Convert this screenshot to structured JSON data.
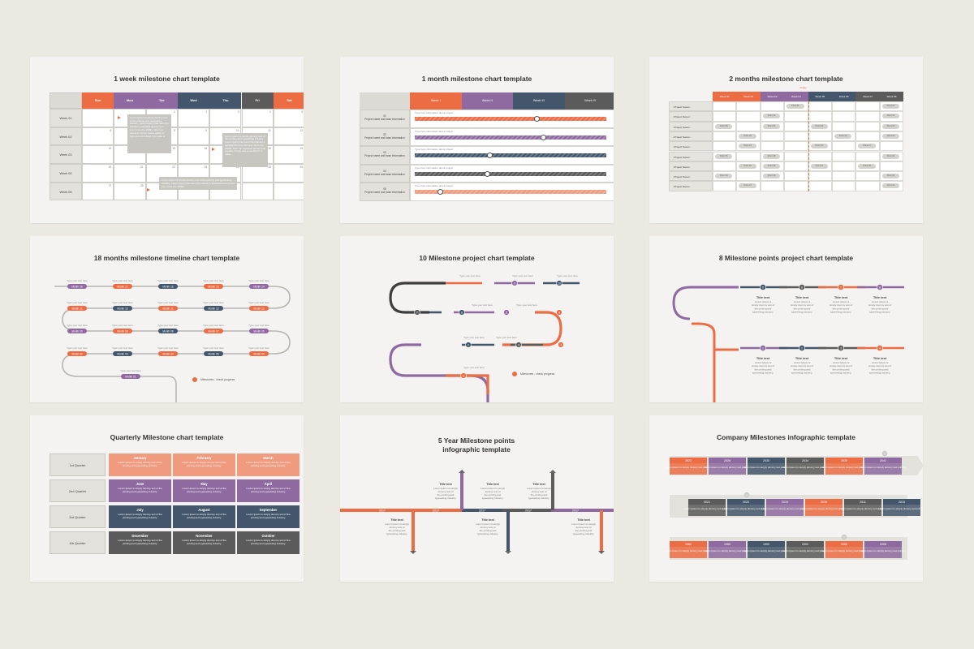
{
  "colors": {
    "orange": "#ec6c44",
    "purple": "#8f6aa0",
    "navy": "#43566b",
    "gray": "#5b5b5b",
    "salmon": "#f09a7e",
    "lightgray": "#dad8d3",
    "bg": "#f4f3f1",
    "page": "#ece9e3"
  },
  "slides": {
    "s1": {
      "title": "1 week milestone chart template",
      "days": [
        "Sun",
        "Mon",
        "Tue",
        "Wed",
        "Thu",
        "Fri",
        "Sat"
      ],
      "weeks": [
        "Week 01",
        "Week 02",
        "Week 03",
        "Week 04",
        "Week 05"
      ],
      "nums": [
        [
          "",
          "",
          "1",
          "2",
          "3",
          "4",
          "5"
        ],
        [
          "6",
          "7",
          "8",
          "9",
          "10",
          "11",
          "12"
        ],
        [
          "13",
          "14",
          "15",
          "16",
          "17",
          "18",
          "19"
        ],
        [
          "20",
          "21",
          "22",
          "23",
          "24",
          "25",
          "26"
        ],
        [
          "27",
          "28",
          "29",
          "30",
          "",
          "",
          ""
        ]
      ],
      "notes": [
        "Lorem Ipsum is simply dummy text of the printing and typesetting industry. Lorem Ipsum has been the industry's standard dummy text ever since the 1500s, when an unknown printer took a galley of type and scrambled it to make a",
        "Lorem Ipsum is simply dummy text of the printing and typesetting industry. Lorem Ipsum has been the industry's standard dummy text ever since the 1500s, when an unknown printer took a galley of type and scrambled it to make",
        "Lorem Ipsum is simply dummy text of the printing and typesetting industry. Lorem Ipsum has been the industry's standard dummy text ever since the 1500s"
      ]
    },
    "s2": {
      "title": "1 month milestone chart template",
      "weeks": [
        "Week I",
        "Week II",
        "Week III",
        "Week IV"
      ],
      "rows": [
        {
          "num": "01",
          "label": "Project name and base information"
        },
        {
          "num": "02",
          "label": "Project name and base information"
        },
        {
          "num": "03",
          "label": "Project name and base information"
        },
        {
          "num": "04",
          "label": "Project name and base information"
        },
        {
          "num": "05",
          "label": "Project name and base information"
        }
      ],
      "info": "Type here information about project"
    },
    "s3": {
      "title": "2 months milestone chart template",
      "today": "Today",
      "weeks": [
        "Week 01",
        "Week 02",
        "Week 03",
        "Week 04",
        "Week 05",
        "Week 06",
        "Week 07",
        "Week 08"
      ],
      "project": "<Project Name>",
      "points": [
        {
          "r": 0,
          "c": 3,
          "t": "Point 01"
        },
        {
          "r": 0,
          "c": 7,
          "t": "Point 07"
        },
        {
          "r": 1,
          "c": 2,
          "t": "Point 12"
        },
        {
          "r": 1,
          "c": 7,
          "t": "Point 21"
        },
        {
          "r": 2,
          "c": 0,
          "t": "Point 08"
        },
        {
          "r": 2,
          "c": 2,
          "t": "Point 04"
        },
        {
          "r": 2,
          "c": 4,
          "t": "Point 03"
        },
        {
          "r": 2,
          "c": 7,
          "t": "Point 25"
        },
        {
          "r": 3,
          "c": 1,
          "t": "Point 29"
        },
        {
          "r": 3,
          "c": 5,
          "t": "Point 23"
        },
        {
          "r": 3,
          "c": 7,
          "t": "Point 26"
        },
        {
          "r": 4,
          "c": 1,
          "t": "Point 10"
        },
        {
          "r": 4,
          "c": 4,
          "t": "Point 32"
        },
        {
          "r": 4,
          "c": 6,
          "t": "Point 17"
        },
        {
          "r": 5,
          "c": 0,
          "t": "Point 05"
        },
        {
          "r": 5,
          "c": 2,
          "t": "Point 18"
        },
        {
          "r": 5,
          "c": 7,
          "t": "Point 30"
        },
        {
          "r": 6,
          "c": 1,
          "t": "Point 02"
        },
        {
          "r": 6,
          "c": 2,
          "t": "Point 16"
        },
        {
          "r": 6,
          "c": 4,
          "t": "Point 11"
        },
        {
          "r": 6,
          "c": 6,
          "t": "Point 09"
        },
        {
          "r": 7,
          "c": 0,
          "t": "Point 14"
        },
        {
          "r": 7,
          "c": 2,
          "t": "Point 19"
        },
        {
          "r": 7,
          "c": 7,
          "t": "Point 20"
        },
        {
          "r": 8,
          "c": 1,
          "t": "Point 27"
        },
        {
          "r": 8,
          "c": 7,
          "t": "Point 22"
        }
      ]
    },
    "s4": {
      "title": "18 months milestone timeline chart template",
      "type": "Type your text here",
      "legend": "Milestones - check progress",
      "rows": [
        [
          "Month 18",
          "Month 17",
          "Month 16",
          "Month 15",
          "Month 14"
        ],
        [
          "Month 11",
          "Month 10",
          "Month 11",
          "Month 12",
          "Month 13"
        ],
        [
          "Month 09",
          "Month 09",
          "Month 08",
          "Month 07",
          "Month 06"
        ],
        [
          "Month 02",
          "Month 03",
          "Month 04",
          "Month 05",
          "Month 05"
        ],
        [
          "Month 01"
        ]
      ]
    },
    "s5": {
      "title": "10 Milestone project chart template",
      "type": "Type your text here",
      "legend": "Milestones - check progress",
      "nums": [
        "1",
        "2",
        "3",
        "4",
        "5",
        "6",
        "7",
        "8",
        "9",
        "10"
      ]
    },
    "s6": {
      "title": "8 Milestone points project chart template",
      "nums": [
        "1",
        "2",
        "3",
        "4",
        "5",
        "6",
        "7",
        "8"
      ],
      "item_title": "Title text",
      "item_body": "Lorem Ipsum is simply dummy text of the printing and typesetting industry."
    },
    "s7": {
      "title": "Quarterly Milestone chart template",
      "quarters": [
        "1st Quarter",
        "2nd Quarter",
        "3rd Quarter",
        "4th Quarter"
      ],
      "months": [
        [
          "January",
          "February",
          "March"
        ],
        [
          "June",
          "May",
          "April"
        ],
        [
          "July",
          "August",
          "September"
        ],
        [
          "December",
          "November",
          "October"
        ]
      ],
      "body": "Lorem Ipsum is simply dummy text of the printing and typesetting industry."
    },
    "s8": {
      "title": "5 Year Milestone points infographic template",
      "years": [
        "2017",
        "2017",
        "2017",
        "2017",
        "2017"
      ],
      "item_title": "Title text",
      "item_body": "Lorem Ipsum is simply dummy text of the printing and typesetting industry."
    },
    "s9": {
      "title": "Company Milestones infographic template",
      "row1": [
        "2022",
        "2028",
        "2030",
        "2034",
        "2035",
        "2041"
      ],
      "row2": [
        "2021",
        "2020",
        "2019",
        "2016",
        "2011",
        "2015"
      ],
      "row3": [
        "1980",
        "1985",
        "1990",
        "2000",
        "2005",
        "2008"
      ],
      "body": "Lorem Ipsum is simply dummy text printing."
    }
  }
}
